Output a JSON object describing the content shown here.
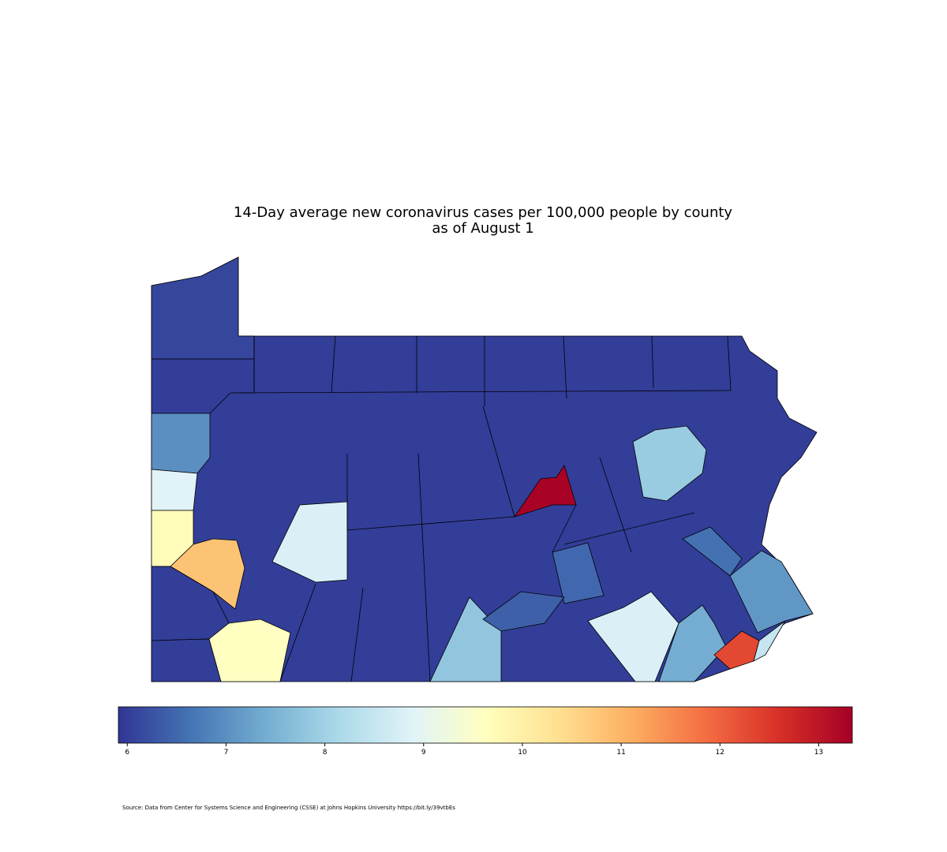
{
  "chart_data": {
    "type": "choropleth",
    "title": [
      "14-Day average new coronavirus cases per 100,000 people by county",
      "as of August 1"
    ],
    "values": [
      6.0,
      6.1,
      6.0,
      7.0,
      8.9,
      9.7,
      10.8,
      6.0,
      6.0,
      9.6,
      8.8,
      13.3,
      7.9,
      7.8,
      8.8,
      7.4,
      12.3,
      8.5,
      7.1,
      6.6,
      6.5,
      6.4
    ],
    "clim": [
      5.91,
      13.34
    ],
    "ticks": [
      6,
      7,
      8,
      9,
      10,
      11,
      12,
      13
    ],
    "colormap": [
      "#313695",
      "#4575b4",
      "#74add1",
      "#abd9e9",
      "#e0f3f8",
      "#ffffbf",
      "#fee090",
      "#fdae61",
      "#f46d43",
      "#d73027",
      "#a50026"
    ],
    "source": "Source: Data from Center for Systems Science and Engineering (CSSE) at Johns Hopkins University https://bit.ly/39vtbEs"
  }
}
